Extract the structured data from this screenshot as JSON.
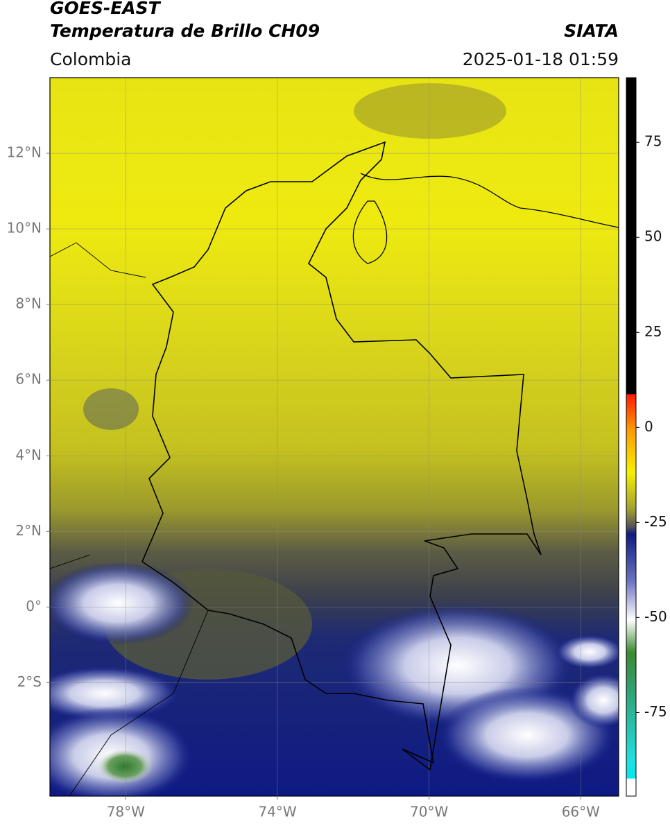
{
  "header": {
    "satellite": "GOES-EAST",
    "product": "Temperatura de Brillo CH09",
    "source": "SIATA",
    "region": "Colombia",
    "datetime": "2025-01-18 01:59"
  },
  "map": {
    "xlim": [
      -80,
      -65
    ],
    "ylim": [
      -5,
      14
    ],
    "xticks": [
      {
        "value": -78,
        "label": "78°W"
      },
      {
        "value": -74,
        "label": "74°W"
      },
      {
        "value": -70,
        "label": "70°W"
      },
      {
        "value": -66,
        "label": "66°W"
      }
    ],
    "yticks": [
      {
        "value": 12,
        "label": "12°N"
      },
      {
        "value": 10,
        "label": "10°N"
      },
      {
        "value": 8,
        "label": "8°N"
      },
      {
        "value": 6,
        "label": "6°N"
      },
      {
        "value": 4,
        "label": "4°N"
      },
      {
        "value": 2,
        "label": "2°N"
      },
      {
        "value": 0,
        "label": "0°"
      },
      {
        "value": -2,
        "label": "2°S"
      }
    ],
    "grid": true
  },
  "colorbar": {
    "lim": [
      -97,
      92
    ],
    "ticks": [
      75,
      50,
      25,
      0,
      -25,
      -50,
      -75
    ]
  }
}
